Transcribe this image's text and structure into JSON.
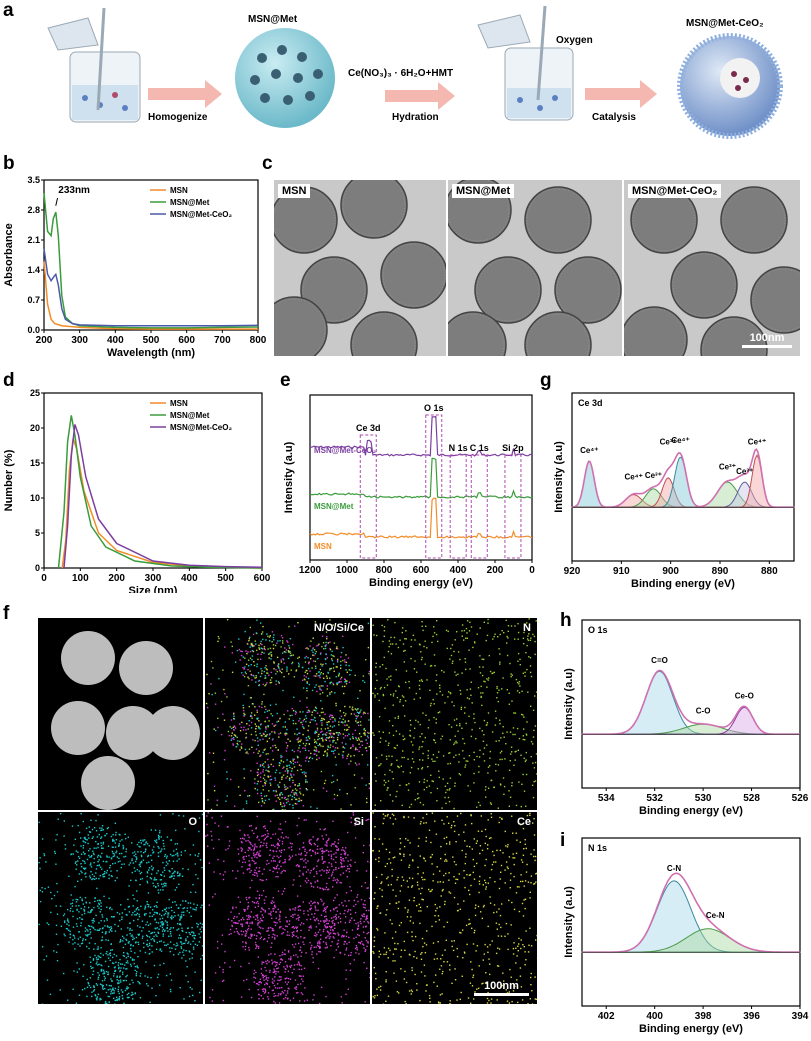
{
  "panel_labels": {
    "a": "a",
    "b": "b",
    "c": "c",
    "d": "d",
    "e": "e",
    "f": "f",
    "g": "g",
    "h": "h",
    "i": "i"
  },
  "scheme": {
    "step1_label": "Homogenize",
    "product1": "MSN@Met",
    "step2_label_top": "Ce(NO₃)₃ · 6H₂O+HMT",
    "step2_label": "Hydration",
    "oxygen": "Oxygen",
    "step3_label": "Catalysis",
    "product2": "MSN@Met-CeO₂"
  },
  "tem": {
    "captions": [
      "MSN",
      "MSN@Met",
      "MSN@Met-CeO₂"
    ],
    "scalebar": "100nm"
  },
  "mapping": {
    "merged_caption": "N/O/Si/Ce",
    "labels": [
      "N",
      "O",
      "Si",
      "Ce"
    ],
    "scalebar": "100nm"
  },
  "chart_data": [
    {
      "panel": "b",
      "type": "line",
      "xlabel": "Wavelength (nm)",
      "ylabel": "Absorbance",
      "xlim": [
        200,
        800
      ],
      "ylim": [
        0,
        3.5
      ],
      "xticks": [
        200,
        300,
        400,
        500,
        600,
        700,
        800
      ],
      "yticks": [
        0.0,
        0.7,
        1.4,
        2.1,
        2.8,
        3.5
      ],
      "annotation": "233nm",
      "legend": "top-right",
      "series": [
        {
          "name": "MSN",
          "color": "#f28c28",
          "points": [
            [
              200,
              1.6
            ],
            [
              210,
              0.6
            ],
            [
              220,
              0.25
            ],
            [
              230,
              0.15
            ],
            [
              250,
              0.1
            ],
            [
              300,
              0.06
            ],
            [
              400,
              0.03
            ],
            [
              500,
              0.02
            ],
            [
              600,
              0.02
            ],
            [
              700,
              0.02
            ],
            [
              800,
              0.02
            ]
          ]
        },
        {
          "name": "MSN@Met",
          "color": "#3a9c3a",
          "points": [
            [
              200,
              3.2
            ],
            [
              210,
              2.3
            ],
            [
              220,
              2.2
            ],
            [
              226,
              2.6
            ],
            [
              233,
              2.75
            ],
            [
              240,
              2.2
            ],
            [
              250,
              0.8
            ],
            [
              260,
              0.3
            ],
            [
              280,
              0.15
            ],
            [
              300,
              0.1
            ],
            [
              400,
              0.06
            ],
            [
              500,
              0.05
            ],
            [
              600,
              0.05
            ],
            [
              700,
              0.06
            ],
            [
              800,
              0.07
            ]
          ]
        },
        {
          "name": "MSN@Met-CeO₂",
          "color": "#4b5aa8",
          "points": [
            [
              200,
              1.9
            ],
            [
              210,
              1.3
            ],
            [
              220,
              1.15
            ],
            [
              228,
              1.25
            ],
            [
              233,
              1.3
            ],
            [
              240,
              1.05
            ],
            [
              250,
              0.5
            ],
            [
              260,
              0.25
            ],
            [
              280,
              0.15
            ],
            [
              300,
              0.12
            ],
            [
              400,
              0.1
            ],
            [
              500,
              0.1
            ],
            [
              600,
              0.1
            ],
            [
              700,
              0.1
            ],
            [
              800,
              0.11
            ]
          ]
        }
      ]
    },
    {
      "panel": "d",
      "type": "line",
      "xlabel": "Size (nm)",
      "ylabel": "Number (%)",
      "xlim": [
        0,
        600
      ],
      "ylim": [
        0,
        25
      ],
      "xticks": [
        0,
        100,
        200,
        300,
        400,
        500,
        600
      ],
      "yticks": [
        0,
        5,
        10,
        15,
        20,
        25
      ],
      "legend": "top-right",
      "series": [
        {
          "name": "MSN",
          "color": "#f28c28",
          "points": [
            [
              50,
              0
            ],
            [
              60,
              4
            ],
            [
              70,
              14
            ],
            [
              80,
              18.5
            ],
            [
              90,
              17
            ],
            [
              110,
              11
            ],
            [
              150,
              5
            ],
            [
              200,
              2.5
            ],
            [
              300,
              0.8
            ],
            [
              400,
              0.3
            ],
            [
              500,
              0.1
            ],
            [
              600,
              0
            ]
          ]
        },
        {
          "name": "MSN@Met",
          "color": "#3a9c3a",
          "points": [
            [
              40,
              0
            ],
            [
              55,
              8
            ],
            [
              65,
              18
            ],
            [
              75,
              21.8
            ],
            [
              85,
              19
            ],
            [
              100,
              13
            ],
            [
              130,
              6
            ],
            [
              170,
              3
            ],
            [
              250,
              1
            ],
            [
              350,
              0.3
            ],
            [
              450,
              0.1
            ],
            [
              600,
              0
            ]
          ]
        },
        {
          "name": "MSN@Met-CeO₂",
          "color": "#7b3fa0",
          "points": [
            [
              55,
              0
            ],
            [
              65,
              6
            ],
            [
              75,
              16
            ],
            [
              85,
              20.5
            ],
            [
              95,
              19
            ],
            [
              115,
              13
            ],
            [
              150,
              7
            ],
            [
              200,
              3.5
            ],
            [
              300,
              1
            ],
            [
              400,
              0.4
            ],
            [
              500,
              0.2
            ],
            [
              600,
              0.1
            ]
          ]
        }
      ]
    },
    {
      "panel": "e",
      "type": "line",
      "xlabel": "Binding energy (eV)",
      "ylabel": "Intensity (a.u)",
      "xlim": [
        1200,
        0
      ],
      "xticks": [
        1200,
        1000,
        800,
        600,
        400,
        200,
        0
      ],
      "peak_labels": [
        "Ce 3d",
        "O 1s",
        "N 1s",
        "C 1s",
        "Si 2p"
      ],
      "series": [
        {
          "name": "MSN@Met-CeO₂",
          "color": "#7b3fa0"
        },
        {
          "name": "MSN@Met",
          "color": "#3a9c3a"
        },
        {
          "name": "MSN",
          "color": "#f28c28"
        }
      ]
    },
    {
      "panel": "g",
      "type": "line",
      "title": "Ce 3d",
      "xlabel": "Binding energy (eV)",
      "ylabel": "Intensity (a.u)",
      "xlim": [
        920,
        875
      ],
      "xticks": [
        920,
        910,
        900,
        890,
        880
      ],
      "peak_labels": [
        "Ce⁴⁺",
        "Ce⁴⁺",
        "Ce³⁺",
        "Ce³⁺",
        "Ce⁴⁺",
        "Ce³⁺",
        "Ce³⁺",
        "Ce⁴⁺"
      ]
    },
    {
      "panel": "h",
      "type": "line",
      "title": "O 1s",
      "xlabel": "Binding energy (eV)",
      "ylabel": "Intensity (a.u)",
      "xlim": [
        535,
        526
      ],
      "xticks": [
        534,
        532,
        530,
        528,
        526
      ],
      "peak_labels": [
        "C=O",
        "C-O",
        "Ce-O"
      ]
    },
    {
      "panel": "i",
      "type": "line",
      "title": "N 1s",
      "xlabel": "Binding energy (eV)",
      "ylabel": "Intensity (a.u)",
      "xlim": [
        403,
        394
      ],
      "xticks": [
        402,
        400,
        398,
        396,
        394
      ],
      "peak_labels": [
        "C-N",
        "Ce-N"
      ]
    }
  ],
  "colors": {
    "msn": "#f28c28",
    "met": "#3a9c3a",
    "ceo2_b": "#4b5aa8",
    "ceo2": "#7b3fa0",
    "arrow": "#f4b8b0"
  }
}
